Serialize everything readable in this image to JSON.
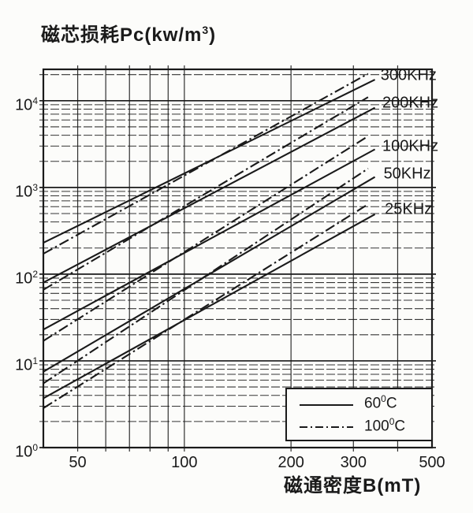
{
  "page": {
    "background": "#fcfcfa",
    "ink_color": "#1a1a1a"
  },
  "header": {
    "y_axis_title_main": "磁芯损耗Pc(kw/m",
    "y_axis_title_sup": "3",
    "y_axis_title_end": ")"
  },
  "chart_data": {
    "type": "line",
    "scale": "log-log",
    "grid": "on",
    "x_axis": {
      "label": "磁通密度B(mT)",
      "min": 40,
      "max": 500,
      "tick_values": [
        50,
        100,
        200,
        300,
        500
      ],
      "tick_labels": [
        "50",
        "100",
        "200",
        "300",
        "500"
      ],
      "minor_gridlines": [
        50,
        60,
        70,
        80,
        90,
        100,
        200,
        300,
        400
      ]
    },
    "y_axis": {
      "label": "磁芯损耗Pc(kw/m³)",
      "min": 1,
      "max": 23000,
      "tick_base": "10",
      "decade_exponents": [
        "4",
        "3",
        "2",
        "1",
        "0"
      ]
    },
    "legend": {
      "position": "bottom-right",
      "items": [
        {
          "line_style": "solid",
          "temp_value": "60",
          "degree_sup": "0",
          "unit": "C",
          "label": "60°C"
        },
        {
          "line_style": "dash-dot",
          "temp_value": "100",
          "degree_sup": "0",
          "unit": "C",
          "label": "100°C"
        }
      ]
    },
    "series": [
      {
        "label": "300KHz",
        "t60": {
          "style": "solid",
          "b": [
            40,
            345
          ],
          "pc": [
            230,
            17500
          ]
        },
        "t100": {
          "style": "dash-dot",
          "b": [
            40,
            330
          ],
          "pc": [
            172,
            20500
          ]
        },
        "label_anchor": {
          "b": 358,
          "pc": 20000
        }
      },
      {
        "label": "200KHz",
        "t60": {
          "style": "solid",
          "b": [
            40,
            345
          ],
          "pc": [
            80,
            8300
          ]
        },
        "t100": {
          "style": "dash-dot",
          "b": [
            40,
            330
          ],
          "pc": [
            66,
            11000
          ]
        },
        "label_anchor": {
          "b": 362,
          "pc": 9700
        }
      },
      {
        "label": "100KHz",
        "t60": {
          "style": "solid",
          "b": [
            40,
            345
          ],
          "pc": [
            23,
            2750
          ]
        },
        "t100": {
          "style": "dash-dot",
          "b": [
            40,
            330
          ],
          "pc": [
            17,
            3900
          ]
        },
        "label_anchor": {
          "b": 362,
          "pc": 3050
        }
      },
      {
        "label": "50KHz",
        "t60": {
          "style": "solid",
          "b": [
            40,
            345
          ],
          "pc": [
            7.5,
            1320
          ]
        },
        "t100": {
          "style": "dash-dot",
          "b": [
            40,
            330
          ],
          "pc": [
            5.5,
            1650
          ]
        },
        "label_anchor": {
          "b": 365,
          "pc": 1470
        }
      },
      {
        "label": "25KHz",
        "t60": {
          "style": "solid",
          "b": [
            40,
            345
          ],
          "pc": [
            3.7,
            490
          ]
        },
        "t100": {
          "style": "dash-dot",
          "b": [
            40,
            330
          ],
          "pc": [
            2.85,
            640
          ]
        },
        "label_anchor": {
          "b": 368,
          "pc": 570
        }
      }
    ]
  }
}
